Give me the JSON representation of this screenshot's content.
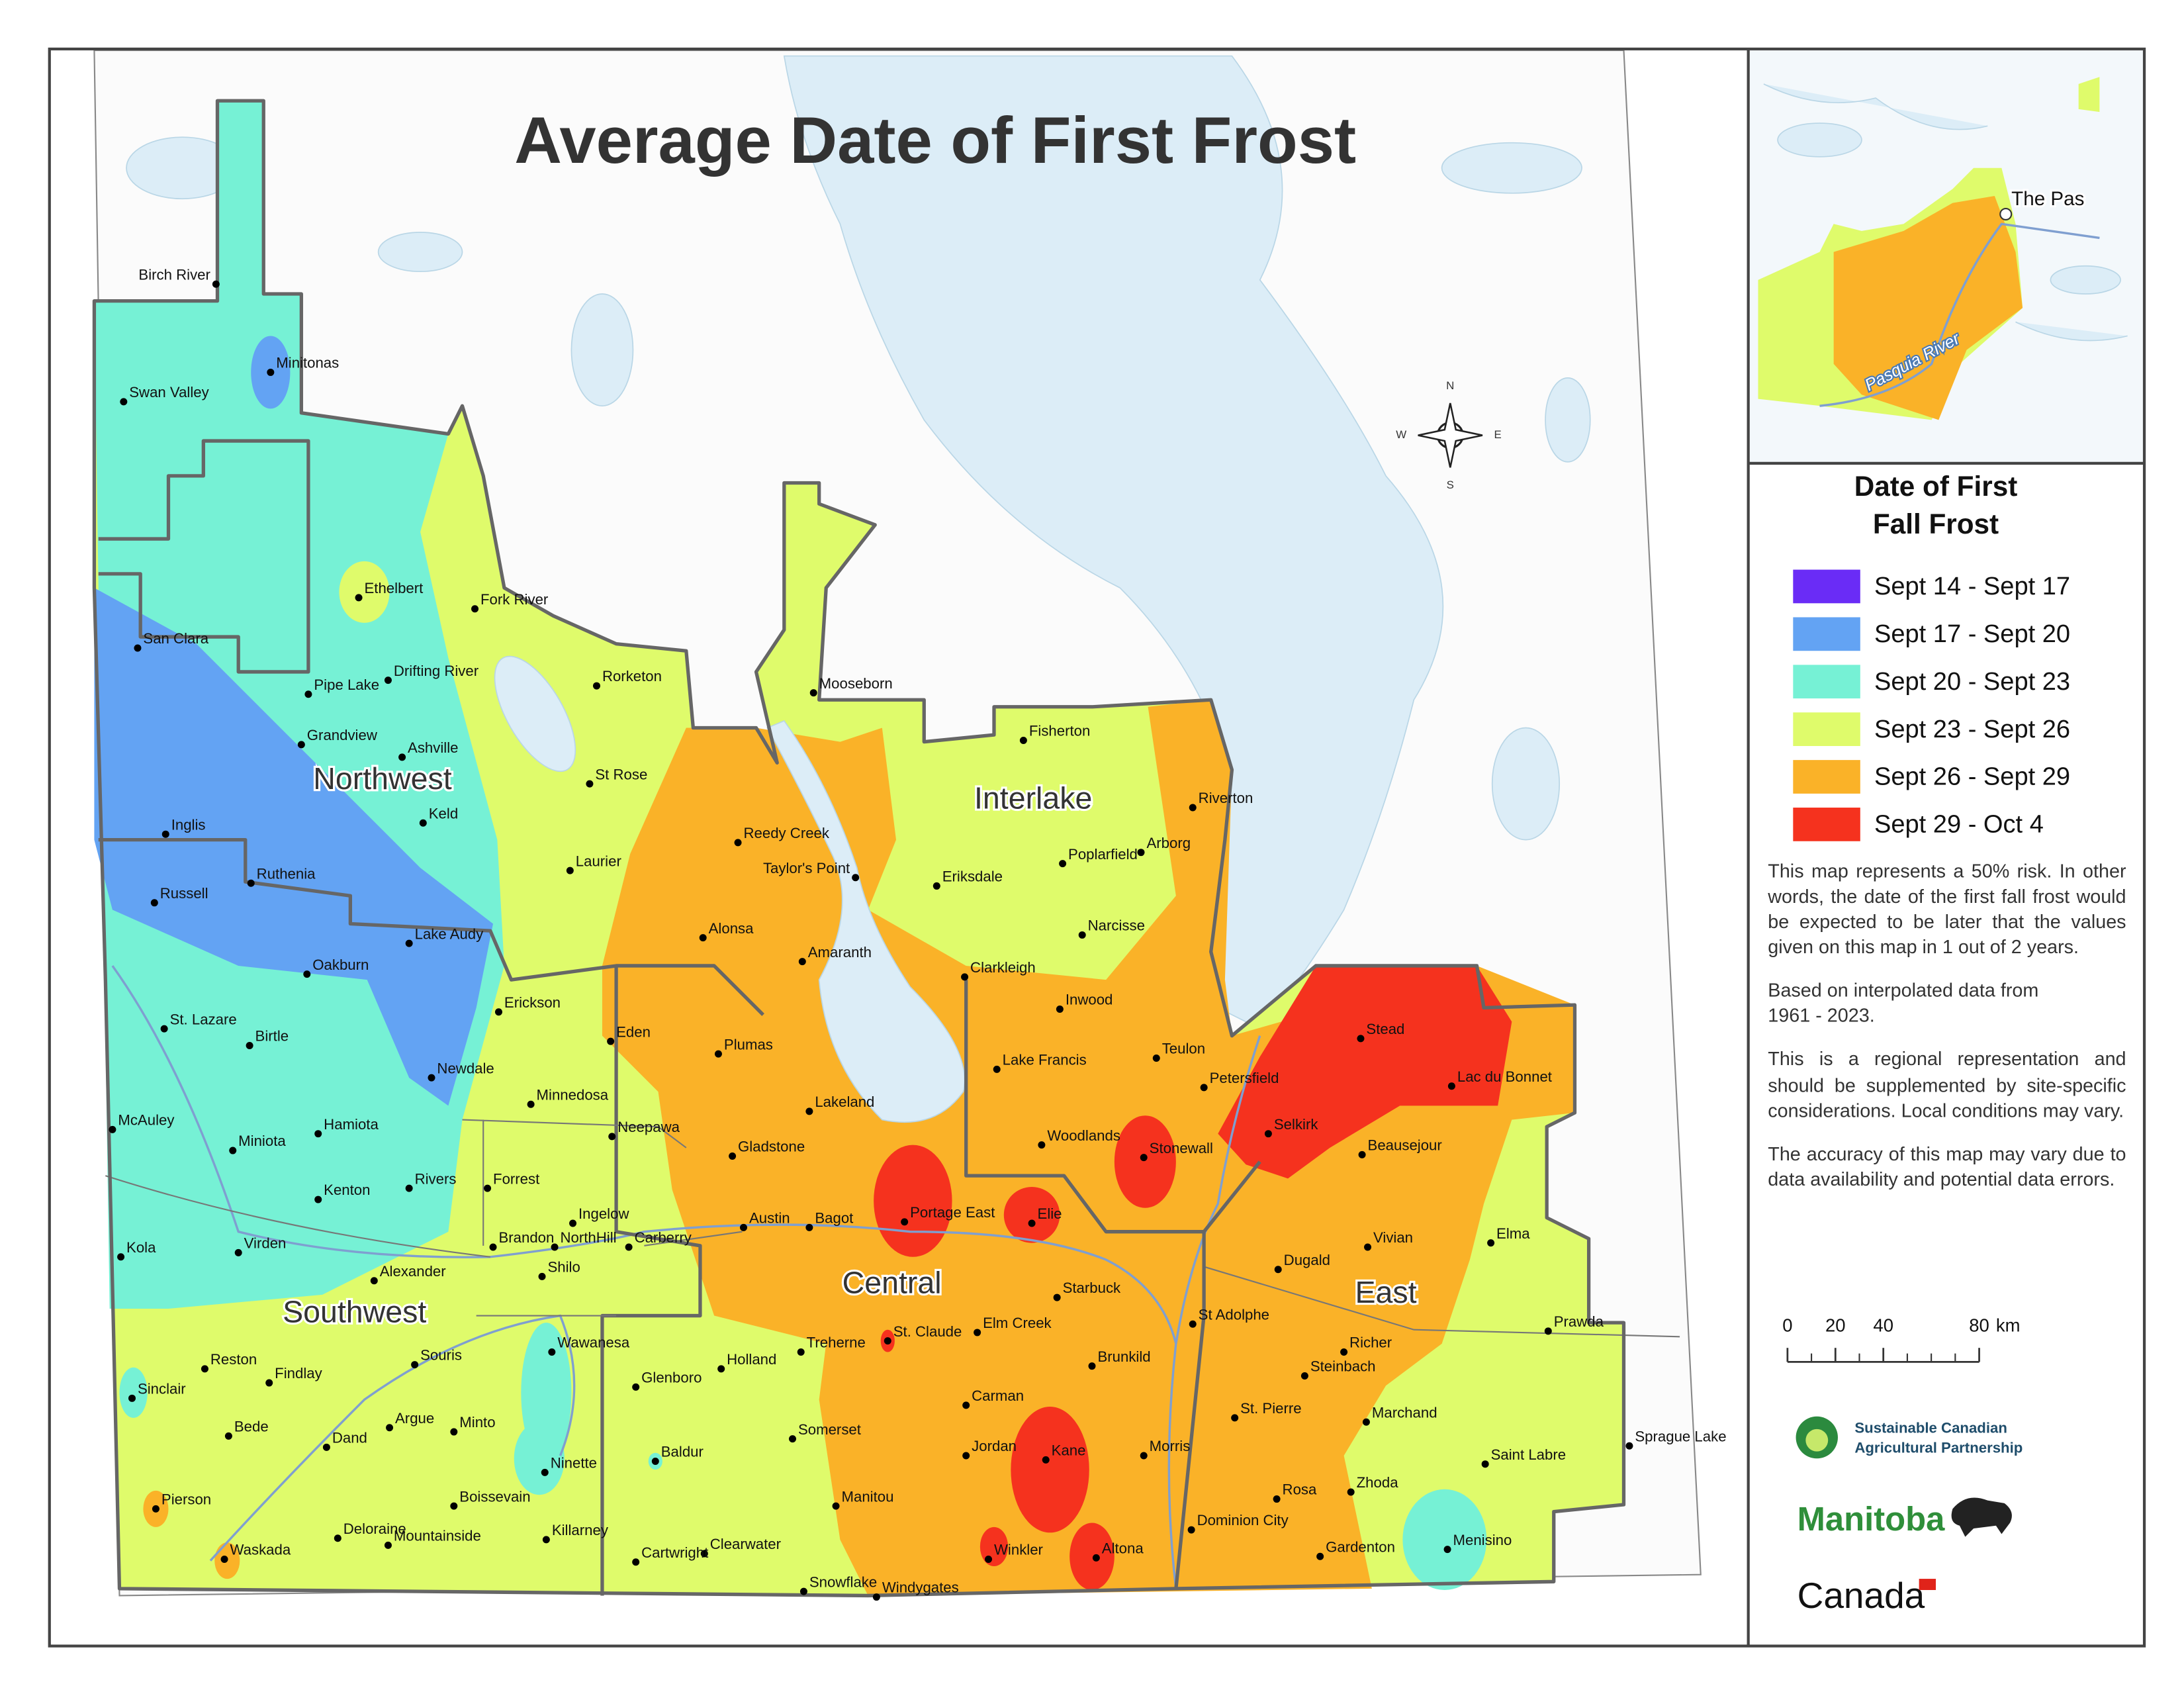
{
  "title": "Average Date of First Frost",
  "regions": [
    "Northwest",
    "Interlake",
    "Central",
    "Southwest",
    "East"
  ],
  "towns": [
    "Birch River",
    "Minitonas",
    "Swan Valley",
    "Ethelbert",
    "Fork River",
    "San Clara",
    "Drifting River",
    "Pipe Lake",
    "Rorketon",
    "Mooseborn",
    "Grandview",
    "Ashville",
    "Fisherton",
    "St Rose",
    "Riverton",
    "Keld",
    "Inglis",
    "Reedy Creek",
    "Arborg",
    "Poplarfield",
    "Ruthenia",
    "Laurier",
    "Taylor's Point",
    "Eriksdale",
    "Russell",
    "Lake Audy",
    "Alonsa",
    "Narcisse",
    "Amaranth",
    "Clarkleigh",
    "Oakburn",
    "Erickson",
    "Inwood",
    "St. Lazare",
    "Eden",
    "Birtle",
    "Plumas",
    "Stead",
    "Teulon",
    "Lake Francis",
    "Newdale",
    "Petersfield",
    "Lac du Bonnet",
    "Minnedosa",
    "Lakeland",
    "McAuley",
    "Hamiota",
    "Neepawa",
    "Woodlands",
    "Selkirk",
    "Miniota",
    "Beausejour",
    "Stonewall",
    "Gladstone",
    "Forrest",
    "Rivers",
    "Kenton",
    "Portage East",
    "Elie",
    "Ingelow",
    "Austin",
    "Bagot",
    "Vivian",
    "Carberry",
    "Brandon",
    "NorthHill",
    "Elma",
    "Kola",
    "Virden",
    "Dugald",
    "Shilo",
    "Alexander",
    "Starbuck",
    "St Adolphe",
    "Prawda",
    "Wawanesa",
    "St. Claude",
    "Elm Creek",
    "Treherne",
    "Richer",
    "Souris",
    "Reston",
    "Holland",
    "Brunkild",
    "Steinbach",
    "Findlay",
    "Glenboro",
    "Sinclair",
    "Carman",
    "Marchand",
    "St. Pierre",
    "Argue",
    "Minto",
    "Bede",
    "Somerset",
    "Dand",
    "Sprague Lake",
    "Morris",
    "Kane",
    "Jordan",
    "Baldur",
    "Ninette",
    "Saint Labre",
    "Zhoda",
    "Boissevain",
    "Rosa",
    "Manitou",
    "Pierson",
    "Killarney",
    "Deloraine",
    "Dominion City",
    "Menisino",
    "Winkler",
    "Altona",
    "Waskada",
    "Mountainside",
    "Clearwater",
    "Gardenton",
    "Cartwright",
    "Snowflake",
    "Windygates"
  ],
  "compass": {
    "n": "N",
    "e": "E",
    "s": "S",
    "w": "W"
  },
  "inset": {
    "town": "The Pas",
    "river": "Pasquia River"
  },
  "legend": {
    "title": [
      "Date of First",
      "Fall Frost"
    ],
    "items": [
      {
        "label": "Sept 14 - Sept 17",
        "color": "#6a2cf6"
      },
      {
        "label": "Sept 17 - Sept 20",
        "color": "#63a3f3"
      },
      {
        "label": "Sept 20 - Sept 23",
        "color": "#76f1d5"
      },
      {
        "label": "Sept 23 - Sept 26",
        "color": "#dffb6b"
      },
      {
        "label": "Sept 26 - Sept 29",
        "color": "#fab228"
      },
      {
        "label": "Sept 29 - Oct 4",
        "color": "#f5321e"
      }
    ]
  },
  "notes": [
    "This map represents a 50% risk. In other words, the date of the first fall frost would be expected to be later that the values given on this map in 1 out of 2 years.",
    "Based on interpolated data from 1961 - 2023.",
    "This is a regional representation and should be supplemented by site-specific considerations. Local conditions may vary.",
    "The accuracy of this map may vary due to data availability and potential data errors."
  ],
  "scale_bar": {
    "ticks": [
      0,
      20,
      40,
      80
    ],
    "unit": "km"
  },
  "logos": {
    "partnership": [
      "Sustainable Canadian",
      "Agricultural Partnership"
    ],
    "province": "Manitoba",
    "country": "Canada"
  }
}
